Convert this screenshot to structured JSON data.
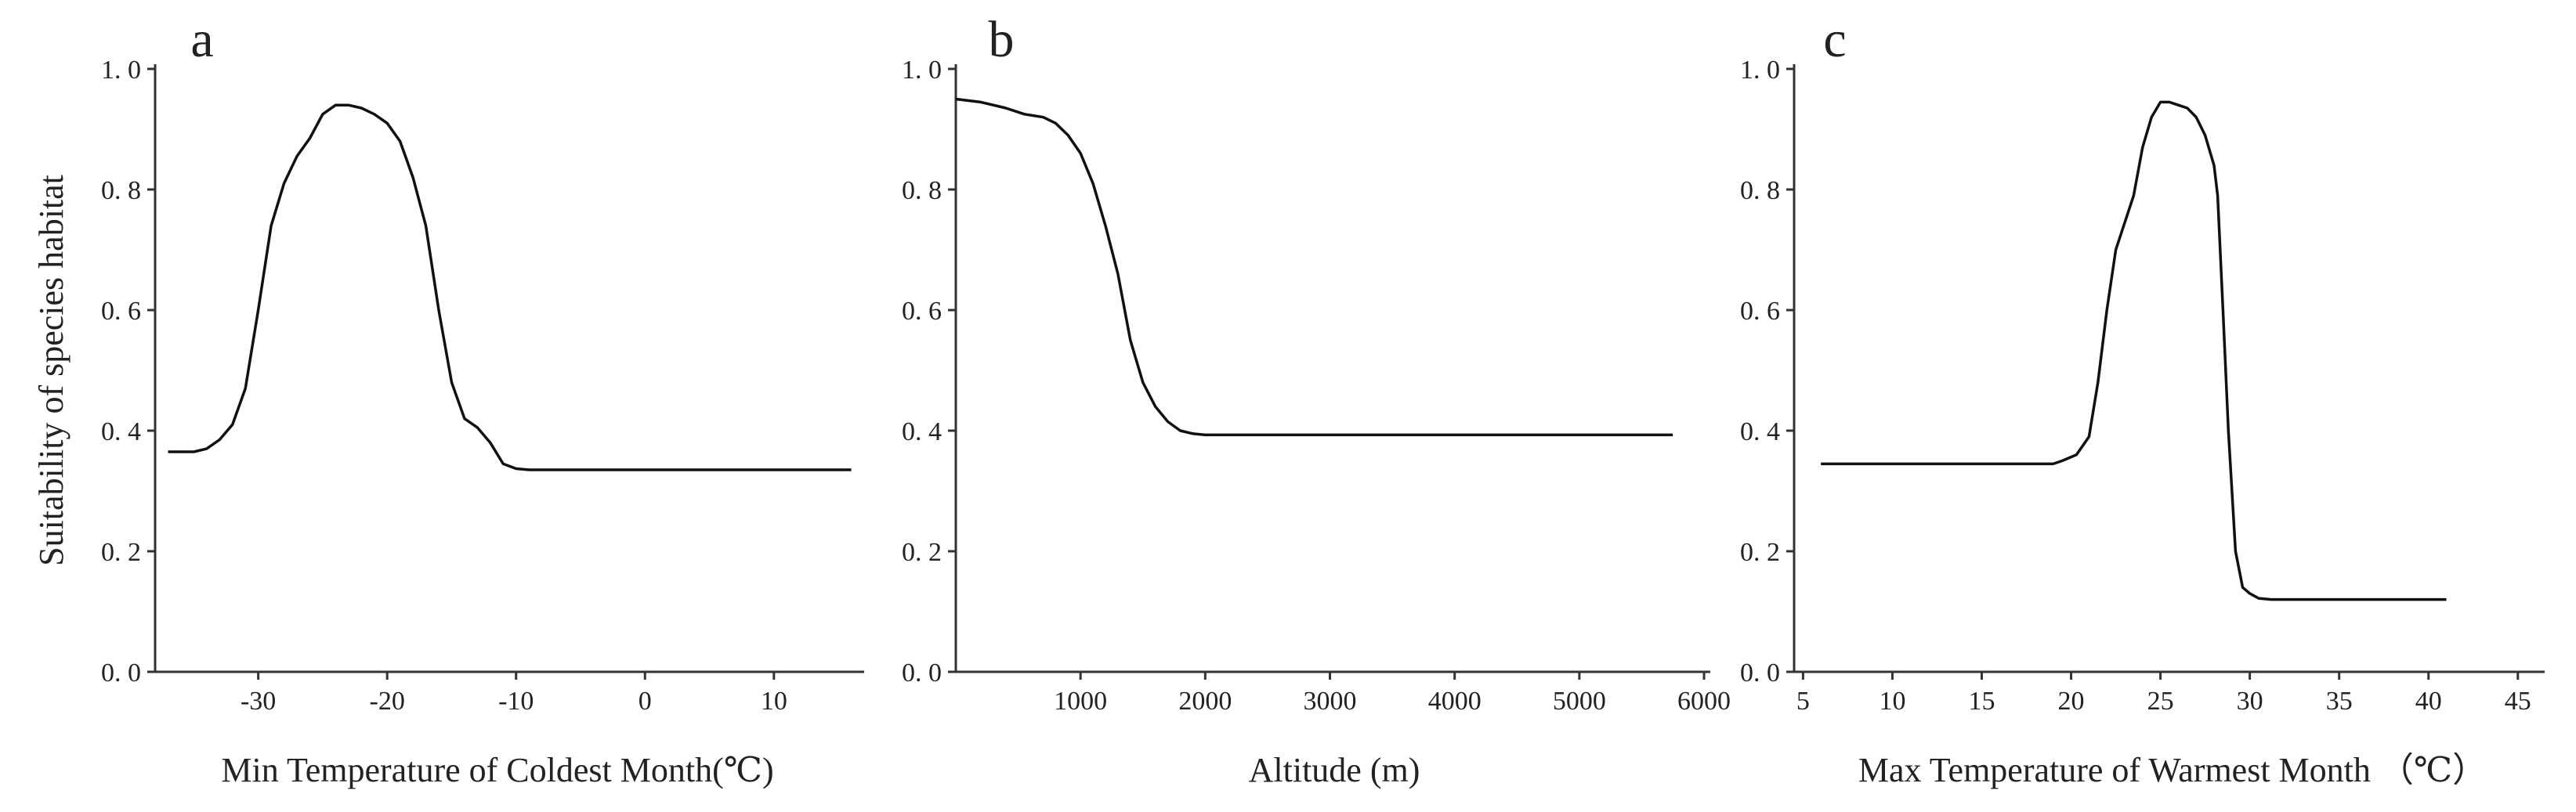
{
  "chart_data": [
    {
      "type": "line",
      "panel_label": "a",
      "ylabel": "Suitability of species habitat",
      "xlabel": "Min Temperature of Coldest Month(℃)",
      "xlim": [
        -38,
        17
      ],
      "ylim": [
        0,
        1.0
      ],
      "xticks": [
        -30,
        -20,
        -10,
        0,
        10
      ],
      "xtick_labels": [
        "-30",
        "-20",
        "-10",
        "0",
        "10"
      ],
      "yticks": [
        0,
        0.2,
        0.4,
        0.6,
        0.8,
        1.0
      ],
      "ytick_labels": [
        "0. 0",
        "0. 2",
        "0. 4",
        "0. 6",
        "0. 8",
        "1. 0"
      ],
      "grid": false,
      "series": [
        {
          "x": [
            -37,
            -35,
            -34,
            -33,
            -32,
            -31,
            -30,
            -29,
            -28,
            -27,
            -26,
            -25,
            -24,
            -23,
            -22,
            -21,
            -20,
            -19,
            -18,
            -17,
            -16,
            -15,
            -14,
            -13,
            -12,
            -11,
            -10,
            -9,
            0,
            10,
            16
          ],
          "y": [
            0.365,
            0.365,
            0.37,
            0.385,
            0.41,
            0.47,
            0.6,
            0.74,
            0.81,
            0.855,
            0.885,
            0.925,
            0.94,
            0.94,
            0.935,
            0.925,
            0.91,
            0.88,
            0.82,
            0.74,
            0.6,
            0.48,
            0.42,
            0.405,
            0.38,
            0.345,
            0.337,
            0.335,
            0.335,
            0.335,
            0.335
          ]
        }
      ]
    },
    {
      "type": "line",
      "panel_label": "b",
      "xlabel": "Altitude (m)",
      "xlim": [
        0,
        6050
      ],
      "ylim": [
        0,
        1.0
      ],
      "xticks": [
        1000,
        2000,
        3000,
        4000,
        5000,
        6000
      ],
      "xtick_labels": [
        "1000",
        "2000",
        "3000",
        "4000",
        "5000",
        "6000"
      ],
      "yticks": [
        0,
        0.2,
        0.4,
        0.6,
        0.8,
        1.0
      ],
      "ytick_labels": [
        "0. 0",
        "0. 2",
        "0. 4",
        "0. 6",
        "0. 8",
        "1. 0"
      ],
      "grid": false,
      "series": [
        {
          "x": [
            0,
            200,
            400,
            550,
            700,
            800,
            900,
            1000,
            1100,
            1200,
            1300,
            1400,
            1500,
            1600,
            1700,
            1800,
            1900,
            2000,
            3000,
            4000,
            5000,
            5750
          ],
          "y": [
            0.95,
            0.945,
            0.935,
            0.925,
            0.92,
            0.91,
            0.89,
            0.86,
            0.81,
            0.74,
            0.66,
            0.55,
            0.48,
            0.44,
            0.415,
            0.4,
            0.395,
            0.393,
            0.393,
            0.393,
            0.393,
            0.393
          ]
        }
      ]
    },
    {
      "type": "line",
      "panel_label": "c",
      "xlabel": "Max Temperature of Warmest Month （℃）",
      "xlim": [
        4.5,
        46.5
      ],
      "ylim": [
        0,
        1.0
      ],
      "xticks": [
        5,
        10,
        15,
        20,
        25,
        30,
        35,
        40,
        45
      ],
      "xtick_labels": [
        "5",
        "10",
        "15",
        "20",
        "25",
        "30",
        "35",
        "40",
        "45"
      ],
      "yticks": [
        0,
        0.2,
        0.4,
        0.6,
        0.8,
        1.0
      ],
      "ytick_labels": [
        "0. 0",
        "0. 2",
        "0. 4",
        "0. 6",
        "0. 8",
        "1. 0"
      ],
      "grid": false,
      "series": [
        {
          "x": [
            6,
            10,
            15,
            19,
            19.5,
            20.3,
            21,
            21.5,
            22,
            22.5,
            23.5,
            24,
            24.5,
            25,
            25.5,
            26,
            26.5,
            27,
            27.5,
            28,
            28.2,
            28.5,
            28.8,
            29.2,
            29.6,
            30,
            30.5,
            31.2,
            35,
            40,
            41
          ],
          "y": [
            0.345,
            0.345,
            0.345,
            0.345,
            0.35,
            0.36,
            0.39,
            0.48,
            0.6,
            0.7,
            0.79,
            0.87,
            0.92,
            0.945,
            0.945,
            0.94,
            0.935,
            0.92,
            0.89,
            0.84,
            0.79,
            0.6,
            0.4,
            0.2,
            0.14,
            0.13,
            0.122,
            0.12,
            0.12,
            0.12,
            0.12
          ]
        }
      ]
    }
  ]
}
